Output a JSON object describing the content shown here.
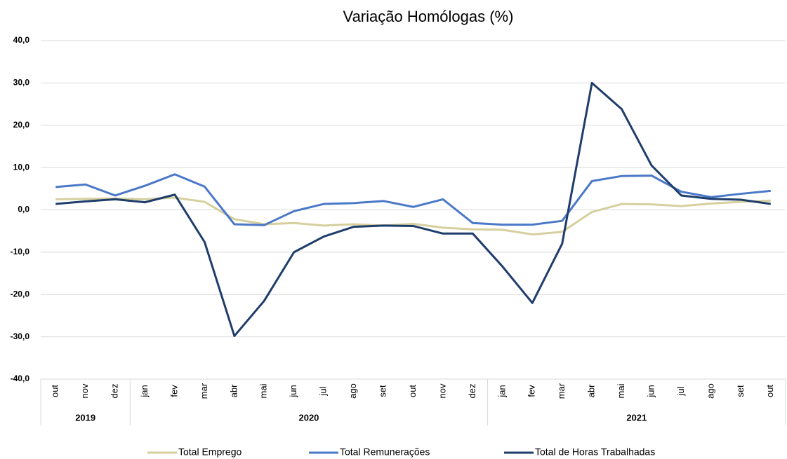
{
  "chart_data": {
    "type": "line",
    "title": "Variação Homólogas (%)",
    "categories": [
      "out",
      "nov",
      "dez",
      "jan",
      "fev",
      "mar",
      "abr",
      "mai",
      "jun",
      "jul",
      "ago",
      "set",
      "out",
      "nov",
      "dez",
      "jan",
      "fev",
      "mar",
      "abr",
      "mai",
      "jun",
      "jul",
      "ago",
      "set",
      "out"
    ],
    "year_groups": [
      {
        "label": "2019",
        "count": 3
      },
      {
        "label": "2020",
        "count": 12
      },
      {
        "label": "2021",
        "count": 10
      }
    ],
    "series": [
      {
        "name": "Total Emprego",
        "color": "#d6cf9e",
        "values": [
          2.5,
          2.6,
          2.7,
          2.5,
          2.9,
          1.9,
          -2.2,
          -3.4,
          -3.1,
          -3.7,
          -3.4,
          -3.7,
          -3.3,
          -4.2,
          -4.6,
          -4.7,
          -5.8,
          -5.2,
          -0.5,
          1.4,
          1.3,
          0.9,
          1.5,
          1.9,
          2.2
        ]
      },
      {
        "name": "Total Remunerações",
        "color": "#4a78c8",
        "values": [
          5.4,
          6.0,
          3.4,
          5.7,
          8.4,
          5.5,
          -3.4,
          -3.6,
          -0.3,
          1.4,
          1.6,
          2.1,
          0.7,
          2.5,
          -3.1,
          -3.5,
          -3.5,
          -2.6,
          6.8,
          8.0,
          8.1,
          4.3,
          3.0,
          3.8,
          4.5
        ]
      },
      {
        "name": "Total de Horas Trabalhadas",
        "color": "#1f3d6b",
        "values": [
          1.4,
          2.0,
          2.5,
          1.8,
          3.6,
          -7.6,
          -29.8,
          -21.5,
          -10.0,
          -6.3,
          -4.0,
          -3.7,
          -3.8,
          -5.6,
          -5.6,
          -13.4,
          -22.0,
          -8.0,
          30.0,
          23.8,
          10.5,
          3.4,
          2.6,
          2.4,
          1.4
        ]
      }
    ],
    "ylim": [
      -40,
      40
    ],
    "yticks": [
      {
        "value": -40,
        "label": "-40,0"
      },
      {
        "value": -30,
        "label": "-30,0"
      },
      {
        "value": -20,
        "label": "-20,0"
      },
      {
        "value": -10,
        "label": "-10,0"
      },
      {
        "value": 0,
        "label": "0,0"
      },
      {
        "value": 10,
        "label": "10,0"
      },
      {
        "value": 20,
        "label": "20,0"
      },
      {
        "value": 30,
        "label": "30,0"
      },
      {
        "value": 40,
        "label": "40,0"
      }
    ],
    "grid": true,
    "legend": "bottom"
  }
}
